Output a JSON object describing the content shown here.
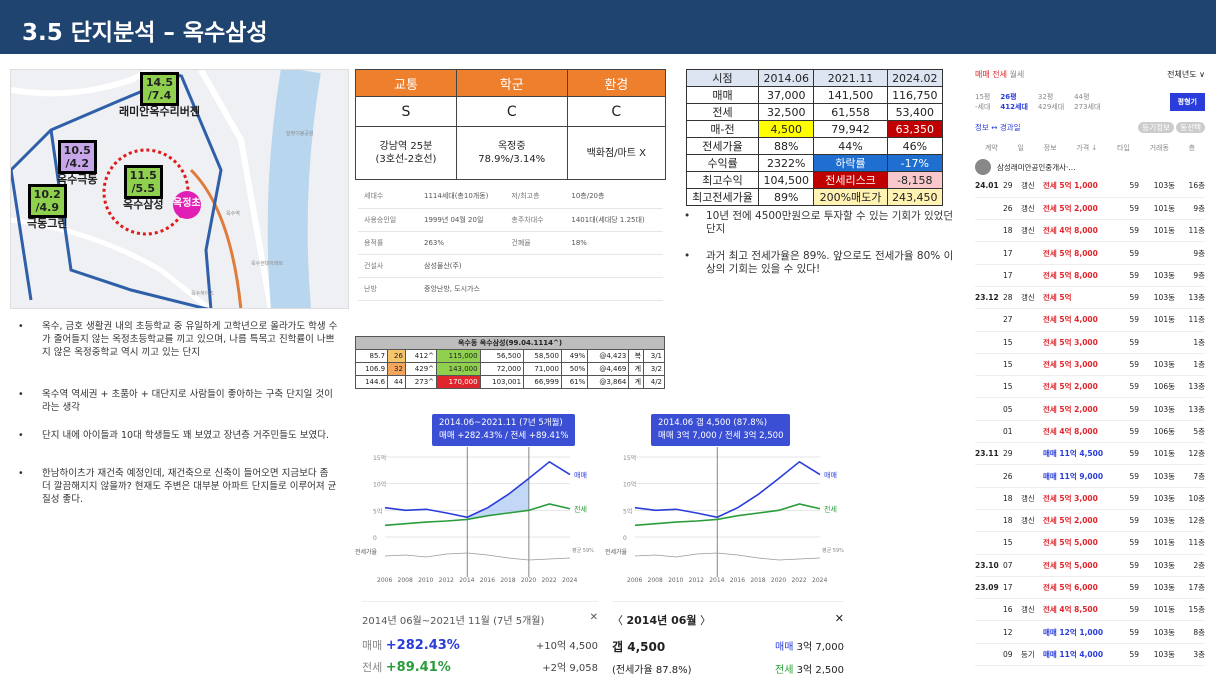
{
  "title": "3.5 단지분석 – 옥수삼성",
  "map": {
    "tags": [
      {
        "price": "14.5",
        "lease": "/7.4",
        "name": "래미안옥수리버젠",
        "border": "#000",
        "bg": "#8fd14f"
      },
      {
        "price": "10.5",
        "lease": "/4.2",
        "name": "옥수극동",
        "border": "#000",
        "bg": "#c6a6e8"
      },
      {
        "price": "11.5",
        "lease": "/5.5",
        "name": "옥수삼성",
        "border": "#000",
        "bg": "#8fd14f"
      },
      {
        "price": "10.2",
        "lease": "/4.9",
        "name": "극동그린",
        "border": "#000",
        "bg": "#8fd14f"
      }
    ],
    "school": "옥정초",
    "labels": [
      "옥수역",
      "옥수현대아파트",
      "옥수하이츠",
      "달맞이봉공원"
    ]
  },
  "bullets": [
    "옥수, 금호 생활권 내의 초등학교 중 유일하게 고학년으로 올라가도 학생 수가 줄어들지 않는 옥정초등학교를 끼고 있으며, 나름 특목고 진학률이 나쁘지 않은 옥정중학교 역시 끼고 있는 단지",
    "옥수역 역세권 + 초품아 + 대단지로 사람들이 좋아하는 구축 단지일 것이라는 생각",
    "단지 내에 아이들과 10대 학생들도 꽤 보였고 장년층 거주민들도 보였다.",
    "한남하이츠가 재건축 예정인데, 재건축으로 신축이 들어오면 지금보다 좀 더 깔끔해지지 않을까? 현재도 주변은 대부분 아파트 단지들로 이루어져 균질성 좋다."
  ],
  "grade": {
    "headers": [
      "교통",
      "학군",
      "환경"
    ],
    "grades": [
      "S",
      "C",
      "C"
    ],
    "details": [
      "강남역 25분\n(3호선-2호선)",
      "옥정중\n78.9%/3.14%",
      "백화점/마트 X"
    ]
  },
  "info": [
    [
      "세대수",
      "1114세대(총10개동)",
      "저/최고층",
      "10층/20층"
    ],
    [
      "사용승인일",
      "1999년 04월 20일",
      "총주차대수",
      "1401대(세대당 1.25대)"
    ],
    [
      "용적률",
      "263%",
      "건폐율",
      "18%"
    ],
    [
      "건설사",
      "삼성물산(주)",
      "",
      ""
    ],
    [
      "난방",
      "중앙난방, 도시가스",
      "",
      ""
    ]
  ],
  "price_table": {
    "header": [
      "시점",
      "2014.06",
      "2021.11",
      "2024.02"
    ],
    "rows": [
      [
        "매매",
        "37,000",
        "141,500",
        "116,750"
      ],
      [
        "전세",
        "32,500",
        "61,558",
        "53,400"
      ],
      [
        "매-전",
        "4,500",
        "79,942",
        "63,350"
      ],
      [
        "전세가율",
        "88%",
        "44%",
        "46%"
      ],
      [
        "수익률",
        "2322%",
        "하락률",
        "-17%"
      ],
      [
        "최고수익",
        "104,500",
        "전세리스크",
        "-8,158"
      ],
      [
        "최고전세가율",
        "89%",
        "200%매도가",
        "243,450"
      ]
    ]
  },
  "right_notes": [
    "10년 전에 4500만원으로 투자할 수 있는 기회가 있었던 단지",
    "과거 최고 전세가율은 89%. 앞으로도 전세가율 80% 이상의 기회는 있을 수 있다!"
  ],
  "mini_table": {
    "title": "옥수동 옥수삼성(99.04.1114^)",
    "rows": [
      [
        "85.7",
        "26",
        "412^",
        "115,000",
        "56,500",
        "58,500",
        "49%",
        "@4,423",
        "복",
        "3/1"
      ],
      [
        "106.9",
        "32",
        "429^",
        "143,000",
        "72,000",
        "71,000",
        "50%",
        "@4,469",
        "계",
        "3/2"
      ],
      [
        "144.6",
        "44",
        "273^",
        "170,000",
        "103,001",
        "66,999",
        "61%",
        "@3,864",
        "계",
        "4/2"
      ]
    ]
  },
  "chart1": {
    "tip1": "2014.06~2021.11 (7년 5개월)",
    "tip2": "매매 +282.43% / 전세 +89.41%",
    "sum_title": "2014년 06월~2021년 11월 (7년 5개월)",
    "sale_label": "매매",
    "sale_pct": "+282.43%",
    "sale_amt": "+10억 4,500",
    "lease_label": "전세",
    "lease_pct": "+89.41%",
    "lease_amt": "+2억 9,058"
  },
  "chart2": {
    "tip1": "2014.06 갭 4,500 (87.8%)",
    "tip2": "매매 3억 7,000 / 전세 3억 2,500",
    "date": "2014년 06월",
    "gap": "갭 4,500",
    "ratio": "(전세가율 87.8%)",
    "sale": "매매",
    "sale_val": "3억 7,000",
    "lease": "전세",
    "lease_val": "3억 2,500"
  },
  "chart_data": {
    "type": "line",
    "x": [
      "2006",
      "2008",
      "2010",
      "2012",
      "2014",
      "2016",
      "2018",
      "2020",
      "2022",
      "2024"
    ],
    "yticks": [
      "15억",
      "10억",
      "5억",
      "0"
    ],
    "series": [
      {
        "name": "매매",
        "values": [
          5.5,
          5.0,
          5.2,
          4.5,
          3.7,
          5.5,
          8.0,
          11.0,
          14.1,
          11.7
        ]
      },
      {
        "name": "전세",
        "values": [
          2.2,
          2.5,
          2.8,
          3.0,
          3.3,
          4.0,
          4.5,
          5.0,
          6.2,
          5.3
        ]
      }
    ],
    "ylim": [
      0,
      15
    ],
    "ratio_label": "전세가율",
    "avg": "평균 59%"
  },
  "panel": {
    "tabs": [
      "매매",
      "전세",
      "월세"
    ],
    "year": "전체년도 ∨",
    "sizes": [
      [
        "15평",
        "-세대"
      ],
      [
        "26평",
        "412세대"
      ],
      [
        "32평",
        "429세대"
      ],
      [
        "44평",
        "273세대"
      ]
    ],
    "compare": "평형기",
    "sub": "정보 ↔ 경과일",
    "filter1": "등기정보",
    "filter2": "동선택",
    "cols": [
      "계약",
      "일",
      "정보",
      "가격 ↓",
      "타입",
      "거래동",
      "층"
    ],
    "agent": "삼성래미안공인중개사·..."
  },
  "trades": [
    [
      "24.01",
      "29",
      "갱신",
      "전세 5억 1,000",
      "59",
      "103동",
      "16층",
      "red"
    ],
    [
      "",
      "26",
      "갱신",
      "전세 5억 2,000",
      "59",
      "101동",
      "9층",
      "red"
    ],
    [
      "",
      "18",
      "갱신",
      "전세 4억 8,000",
      "59",
      "101동",
      "11층",
      "red"
    ],
    [
      "",
      "17",
      "",
      "전세 5억 8,000",
      "59",
      "",
      "9층",
      "red"
    ],
    [
      "",
      "17",
      "",
      "전세 5억 8,000",
      "59",
      "103동",
      "9층",
      "red"
    ],
    [
      "23.12",
      "28",
      "갱신",
      "전세 5억",
      "59",
      "103동",
      "13층",
      "red"
    ],
    [
      "",
      "27",
      "",
      "전세 5억 4,000",
      "59",
      "101동",
      "11층",
      "red"
    ],
    [
      "",
      "15",
      "",
      "전세 5억 3,000",
      "59",
      "",
      "1층",
      "red"
    ],
    [
      "",
      "15",
      "",
      "전세 5억 3,000",
      "59",
      "103동",
      "1층",
      "red"
    ],
    [
      "",
      "15",
      "",
      "전세 5억 2,000",
      "59",
      "106동",
      "13층",
      "red"
    ],
    [
      "",
      "05",
      "",
      "전세 5억 2,000",
      "59",
      "103동",
      "13층",
      "red"
    ],
    [
      "",
      "01",
      "",
      "전세 4억 8,000",
      "59",
      "106동",
      "5층",
      "red"
    ],
    [
      "23.11",
      "29",
      "",
      "매매 11억 4,500",
      "59",
      "101동",
      "12층",
      "blue"
    ],
    [
      "",
      "26",
      "",
      "매매 11억 9,000",
      "59",
      "103동",
      "7층",
      "blue"
    ],
    [
      "",
      "18",
      "갱신",
      "전세 5억 3,000",
      "59",
      "103동",
      "10층",
      "red"
    ],
    [
      "",
      "18",
      "갱신",
      "전세 5억 2,000",
      "59",
      "103동",
      "12층",
      "red"
    ],
    [
      "",
      "15",
      "",
      "전세 5억 5,000",
      "59",
      "101동",
      "11층",
      "red"
    ],
    [
      "23.10",
      "07",
      "",
      "전세 5억 5,000",
      "59",
      "103동",
      "2층",
      "red"
    ],
    [
      "23.09",
      "17",
      "",
      "전세 5억 6,000",
      "59",
      "103동",
      "17층",
      "red"
    ],
    [
      "",
      "16",
      "갱신",
      "전세 4억 8,500",
      "59",
      "101동",
      "15층",
      "red"
    ],
    [
      "",
      "12",
      "",
      "매매 12억 1,000",
      "59",
      "103동",
      "8층",
      "blue"
    ],
    [
      "",
      "09",
      "등기",
      "매매 11억 4,000",
      "59",
      "103동",
      "3층",
      "blue"
    ]
  ]
}
